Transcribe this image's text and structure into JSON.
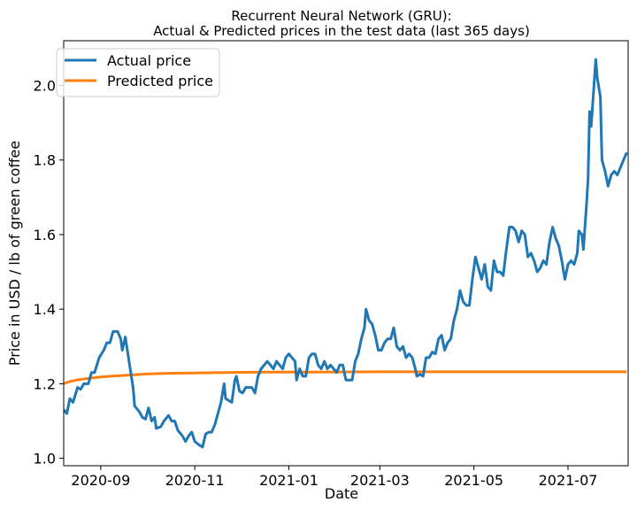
{
  "chart_data": {
    "type": "line",
    "title": "Recurrent Neural Network (GRU):",
    "subtitle": "Actual & Predicted prices in the test data (last 365 days)",
    "xlabel": "Date",
    "ylabel": "Price in USD / lb of green coffee",
    "x_range": [
      "2020-08-08",
      "2021-08-09"
    ],
    "ylim": [
      0.98,
      2.12
    ],
    "x_ticks": [
      "2020-09-01",
      "2020-11-01",
      "2021-01-01",
      "2021-03-01",
      "2021-05-01",
      "2021-07-01"
    ],
    "x_tick_labels": [
      "2020-09",
      "2020-11",
      "2021-01",
      "2021-03",
      "2021-05",
      "2021-07"
    ],
    "y_ticks": [
      1.0,
      1.2,
      1.4,
      1.6,
      1.8,
      2.0
    ],
    "y_tick_labels": [
      "1.0",
      "1.2",
      "1.4",
      "1.6",
      "1.8",
      "2.0"
    ],
    "grid": false,
    "legend_position": "top-left",
    "series": [
      {
        "name": "Actual price",
        "color": "#1f77b4",
        "points": [
          [
            "2020-08-08",
            1.13
          ],
          [
            "2020-08-10",
            1.12
          ],
          [
            "2020-08-12",
            1.16
          ],
          [
            "2020-08-14",
            1.15
          ],
          [
            "2020-08-17",
            1.19
          ],
          [
            "2020-08-19",
            1.185
          ],
          [
            "2020-08-21",
            1.2
          ],
          [
            "2020-08-24",
            1.2
          ],
          [
            "2020-08-26",
            1.23
          ],
          [
            "2020-08-28",
            1.23
          ],
          [
            "2020-08-31",
            1.27
          ],
          [
            "2020-09-03",
            1.29
          ],
          [
            "2020-09-05",
            1.31
          ],
          [
            "2020-09-07",
            1.31
          ],
          [
            "2020-09-09",
            1.34
          ],
          [
            "2020-09-12",
            1.34
          ],
          [
            "2020-09-14",
            1.32
          ],
          [
            "2020-09-15",
            1.29
          ],
          [
            "2020-09-17",
            1.325
          ],
          [
            "2020-09-19",
            1.27
          ],
          [
            "2020-09-22",
            1.19
          ],
          [
            "2020-09-23",
            1.14
          ],
          [
            "2020-09-26",
            1.125
          ],
          [
            "2020-09-28",
            1.11
          ],
          [
            "2020-09-30",
            1.105
          ],
          [
            "2020-10-02",
            1.135
          ],
          [
            "2020-10-04",
            1.1
          ],
          [
            "2020-10-06",
            1.11
          ],
          [
            "2020-10-07",
            1.08
          ],
          [
            "2020-10-10",
            1.085
          ],
          [
            "2020-10-12",
            1.1
          ],
          [
            "2020-10-15",
            1.115
          ],
          [
            "2020-10-17",
            1.1
          ],
          [
            "2020-10-19",
            1.1
          ],
          [
            "2020-10-21",
            1.075
          ],
          [
            "2020-10-24",
            1.06
          ],
          [
            "2020-10-26",
            1.045
          ],
          [
            "2020-10-28",
            1.06
          ],
          [
            "2020-10-30",
            1.07
          ],
          [
            "2020-11-01",
            1.045
          ],
          [
            "2020-11-04",
            1.035
          ],
          [
            "2020-11-06",
            1.03
          ],
          [
            "2020-11-08",
            1.065
          ],
          [
            "2020-11-10",
            1.07
          ],
          [
            "2020-11-12",
            1.07
          ],
          [
            "2020-11-14",
            1.09
          ],
          [
            "2020-11-16",
            1.12
          ],
          [
            "2020-11-18",
            1.15
          ],
          [
            "2020-11-20",
            1.2
          ],
          [
            "2020-11-21",
            1.16
          ],
          [
            "2020-11-23",
            1.155
          ],
          [
            "2020-11-25",
            1.15
          ],
          [
            "2020-11-27",
            1.21
          ],
          [
            "2020-11-28",
            1.22
          ],
          [
            "2020-11-30",
            1.18
          ],
          [
            "2020-12-02",
            1.175
          ],
          [
            "2020-12-04",
            1.19
          ],
          [
            "2020-12-06",
            1.19
          ],
          [
            "2020-12-08",
            1.19
          ],
          [
            "2020-12-10",
            1.175
          ],
          [
            "2020-12-12",
            1.22
          ],
          [
            "2020-12-14",
            1.24
          ],
          [
            "2020-12-16",
            1.25
          ],
          [
            "2020-12-18",
            1.26
          ],
          [
            "2020-12-20",
            1.25
          ],
          [
            "2020-12-22",
            1.24
          ],
          [
            "2020-12-24",
            1.26
          ],
          [
            "2020-12-26",
            1.25
          ],
          [
            "2020-12-28",
            1.24
          ],
          [
            "2020-12-30",
            1.27
          ],
          [
            "2021-01-01",
            1.28
          ],
          [
            "2021-01-03",
            1.27
          ],
          [
            "2021-01-05",
            1.26
          ],
          [
            "2021-01-06",
            1.21
          ],
          [
            "2021-01-08",
            1.24
          ],
          [
            "2021-01-10",
            1.22
          ],
          [
            "2021-01-12",
            1.22
          ],
          [
            "2021-01-14",
            1.27
          ],
          [
            "2021-01-16",
            1.28
          ],
          [
            "2021-01-18",
            1.28
          ],
          [
            "2021-01-20",
            1.25
          ],
          [
            "2021-01-22",
            1.24
          ],
          [
            "2021-01-24",
            1.26
          ],
          [
            "2021-01-26",
            1.24
          ],
          [
            "2021-01-28",
            1.25
          ],
          [
            "2021-01-30",
            1.24
          ],
          [
            "2021-02-01",
            1.23
          ],
          [
            "2021-02-03",
            1.25
          ],
          [
            "2021-02-05",
            1.25
          ],
          [
            "2021-02-07",
            1.21
          ],
          [
            "2021-02-09",
            1.21
          ],
          [
            "2021-02-11",
            1.21
          ],
          [
            "2021-02-13",
            1.26
          ],
          [
            "2021-02-15",
            1.28
          ],
          [
            "2021-02-17",
            1.32
          ],
          [
            "2021-02-19",
            1.35
          ],
          [
            "2021-02-20",
            1.4
          ],
          [
            "2021-02-22",
            1.37
          ],
          [
            "2021-02-24",
            1.36
          ],
          [
            "2021-02-26",
            1.33
          ],
          [
            "2021-02-28",
            1.29
          ],
          [
            "2021-03-02",
            1.29
          ],
          [
            "2021-03-04",
            1.31
          ],
          [
            "2021-03-06",
            1.32
          ],
          [
            "2021-03-08",
            1.32
          ],
          [
            "2021-03-10",
            1.35
          ],
          [
            "2021-03-12",
            1.3
          ],
          [
            "2021-03-14",
            1.29
          ],
          [
            "2021-03-16",
            1.3
          ],
          [
            "2021-03-18",
            1.27
          ],
          [
            "2021-03-20",
            1.28
          ],
          [
            "2021-03-22",
            1.27
          ],
          [
            "2021-03-24",
            1.24
          ],
          [
            "2021-03-25",
            1.22
          ],
          [
            "2021-03-27",
            1.225
          ],
          [
            "2021-03-29",
            1.22
          ],
          [
            "2021-03-31",
            1.27
          ],
          [
            "2021-04-02",
            1.27
          ],
          [
            "2021-04-04",
            1.285
          ],
          [
            "2021-04-06",
            1.28
          ],
          [
            "2021-04-08",
            1.32
          ],
          [
            "2021-04-10",
            1.33
          ],
          [
            "2021-04-12",
            1.29
          ],
          [
            "2021-04-14",
            1.31
          ],
          [
            "2021-04-16",
            1.32
          ],
          [
            "2021-04-18",
            1.37
          ],
          [
            "2021-04-20",
            1.4
          ],
          [
            "2021-04-22",
            1.45
          ],
          [
            "2021-04-24",
            1.42
          ],
          [
            "2021-04-26",
            1.41
          ],
          [
            "2021-04-28",
            1.41
          ],
          [
            "2021-04-30",
            1.48
          ],
          [
            "2021-05-02",
            1.54
          ],
          [
            "2021-05-04",
            1.51
          ],
          [
            "2021-05-06",
            1.48
          ],
          [
            "2021-05-08",
            1.52
          ],
          [
            "2021-05-10",
            1.46
          ],
          [
            "2021-05-12",
            1.45
          ],
          [
            "2021-05-14",
            1.53
          ],
          [
            "2021-05-16",
            1.5
          ],
          [
            "2021-05-18",
            1.5
          ],
          [
            "2021-05-20",
            1.49
          ],
          [
            "2021-05-22",
            1.56
          ],
          [
            "2021-05-24",
            1.62
          ],
          [
            "2021-05-26",
            1.62
          ],
          [
            "2021-05-28",
            1.61
          ],
          [
            "2021-05-30",
            1.58
          ],
          [
            "2021-06-01",
            1.61
          ],
          [
            "2021-06-03",
            1.6
          ],
          [
            "2021-06-05",
            1.54
          ],
          [
            "2021-06-07",
            1.55
          ],
          [
            "2021-06-09",
            1.53
          ],
          [
            "2021-06-11",
            1.5
          ],
          [
            "2021-06-13",
            1.51
          ],
          [
            "2021-06-15",
            1.53
          ],
          [
            "2021-06-17",
            1.52
          ],
          [
            "2021-06-19",
            1.58
          ],
          [
            "2021-06-21",
            1.62
          ],
          [
            "2021-06-23",
            1.59
          ],
          [
            "2021-06-25",
            1.57
          ],
          [
            "2021-06-27",
            1.53
          ],
          [
            "2021-06-29",
            1.48
          ],
          [
            "2021-07-01",
            1.52
          ],
          [
            "2021-07-03",
            1.53
          ],
          [
            "2021-07-05",
            1.52
          ],
          [
            "2021-07-07",
            1.55
          ],
          [
            "2021-07-08",
            1.61
          ],
          [
            "2021-07-10",
            1.6
          ],
          [
            "2021-07-11",
            1.56
          ],
          [
            "2021-07-13",
            1.68
          ],
          [
            "2021-07-14",
            1.75
          ],
          [
            "2021-07-15",
            1.93
          ],
          [
            "2021-07-16",
            1.89
          ],
          [
            "2021-07-17",
            1.95
          ],
          [
            "2021-07-19",
            2.07
          ],
          [
            "2021-07-20",
            2.02
          ],
          [
            "2021-07-22",
            1.97
          ],
          [
            "2021-07-23",
            1.8
          ],
          [
            "2021-07-25",
            1.77
          ],
          [
            "2021-07-27",
            1.73
          ],
          [
            "2021-07-29",
            1.76
          ],
          [
            "2021-07-31",
            1.77
          ],
          [
            "2021-08-02",
            1.76
          ],
          [
            "2021-08-04",
            1.78
          ],
          [
            "2021-08-06",
            1.8
          ],
          [
            "2021-08-08",
            1.82
          ]
        ]
      },
      {
        "name": "Predicted price",
        "color": "#ff7f0e",
        "points": [
          [
            "2020-08-08",
            1.2
          ],
          [
            "2020-08-12",
            1.206
          ],
          [
            "2020-08-18",
            1.211
          ],
          [
            "2020-08-25",
            1.215
          ],
          [
            "2020-09-03",
            1.219
          ],
          [
            "2020-09-15",
            1.222
          ],
          [
            "2020-10-01",
            1.226
          ],
          [
            "2020-10-15",
            1.228
          ],
          [
            "2020-11-01",
            1.229
          ],
          [
            "2020-11-20",
            1.23
          ],
          [
            "2020-12-15",
            1.231
          ],
          [
            "2021-01-15",
            1.231
          ],
          [
            "2021-03-01",
            1.232
          ],
          [
            "2021-05-01",
            1.232
          ],
          [
            "2021-07-01",
            1.232
          ],
          [
            "2021-08-08",
            1.232
          ]
        ]
      }
    ]
  }
}
